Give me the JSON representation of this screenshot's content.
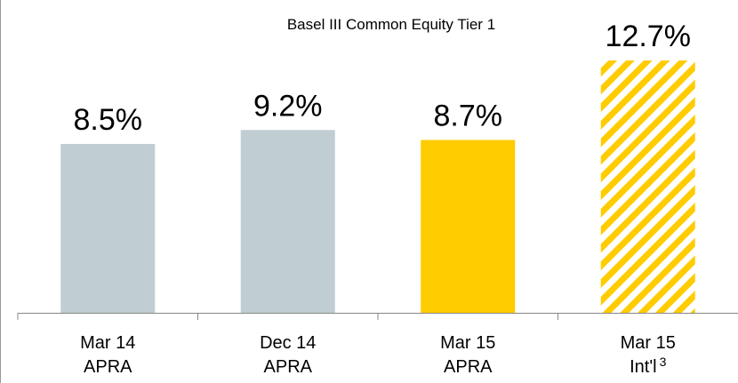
{
  "chart_data": {
    "type": "bar",
    "title": "Basel III Common Equity Tier 1",
    "categories": [
      [
        "Mar 14",
        "APRA"
      ],
      [
        "Dec 14",
        "APRA"
      ],
      [
        "Mar 15",
        "APRA"
      ],
      [
        "Mar 15",
        "Int'l"
      ]
    ],
    "category_superscripts": [
      null,
      null,
      null,
      "3"
    ],
    "values": [
      8.5,
      9.2,
      8.7,
      12.7
    ],
    "value_labels": [
      "8.5%",
      "9.2%",
      "8.7%",
      "12.7%"
    ],
    "colors": [
      "#c0cdd2",
      "#c0cdd2",
      "#ffcc00",
      "#ffcc00"
    ],
    "hatched": [
      false,
      false,
      false,
      true
    ],
    "ylim": [
      0,
      14
    ]
  }
}
